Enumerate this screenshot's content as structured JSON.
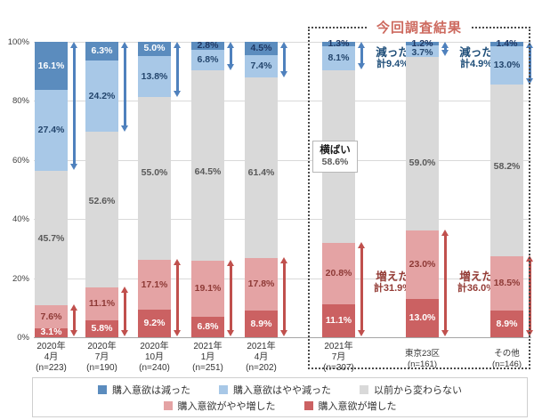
{
  "chart": {
    "box_title": "今回調査結果",
    "legend": {
      "row1": [
        {
          "name": "decreased",
          "label": "購入意欲は減った",
          "color": "#5b8cbe"
        },
        {
          "name": "somewhat-decreased",
          "label": "購入意欲はやや減った",
          "color": "#a8c8e7"
        },
        {
          "name": "unchanged",
          "label": "以前から変わらない",
          "color": "#d9d9d9"
        }
      ],
      "row2": [
        {
          "name": "somewhat-increased",
          "label": "購入意欲がやや増した",
          "color": "#e4a3a4"
        },
        {
          "name": "increased",
          "label": "購入意欲が増した",
          "color": "#cb6162"
        }
      ]
    }
  },
  "chart_data": {
    "type": "bar",
    "stacked": true,
    "orientation": "vertical",
    "unit": "%",
    "ylim": [
      0,
      100
    ],
    "yticks": [
      0,
      20,
      40,
      60,
      80,
      100
    ],
    "ytick_labels": [
      "0%",
      "20%",
      "40%",
      "60%",
      "80%",
      "100%"
    ],
    "grid": true,
    "legend_position": "bottom",
    "series_bottom_to_top": [
      {
        "key": "increased",
        "name": "購入意欲が増した",
        "color": "#cb6162",
        "label_color": "#ffffff"
      },
      {
        "key": "somewhat_increased",
        "name": "購入意欲がやや増した",
        "color": "#e4a3a4",
        "label_color": "#8e3a36"
      },
      {
        "key": "unchanged",
        "name": "以前から変わらない",
        "color": "#d9d9d9",
        "label_color": "#595959"
      },
      {
        "key": "somewhat_decreased",
        "name": "購入意欲はやや減った",
        "color": "#a8c8e7",
        "label_color": "#24466d"
      },
      {
        "key": "decreased",
        "name": "購入意欲は減った",
        "color": "#5b8cbe",
        "label_color": "#ffffff",
        "thin_label_color": "#1f3864"
      }
    ],
    "bars": [
      {
        "label_lines": [
          "2020年",
          "4月",
          "(n=223)"
        ],
        "values": [
          3.1,
          7.6,
          45.7,
          27.4,
          16.1
        ]
      },
      {
        "label_lines": [
          "2020年",
          "7月",
          "(n=190)"
        ],
        "values": [
          5.8,
          11.1,
          52.6,
          24.2,
          6.3
        ]
      },
      {
        "label_lines": [
          "2020年",
          "10月",
          "(n=240)"
        ],
        "values": [
          9.2,
          17.1,
          55.0,
          13.8,
          5.0
        ]
      },
      {
        "label_lines": [
          "2021年",
          "1月",
          "(n=251)"
        ],
        "values": [
          6.8,
          19.1,
          64.5,
          6.8,
          2.8
        ]
      },
      {
        "label_lines": [
          "2021年",
          "4月",
          "(n=202)"
        ],
        "values": [
          8.9,
          17.8,
          61.4,
          7.4,
          4.5
        ]
      },
      {
        "label_lines": [
          "2021年",
          "7月",
          "(n=307)"
        ],
        "values": [
          11.1,
          20.8,
          58.6,
          8.1,
          1.3
        ],
        "dec_note": {
          "lines": [
            "減った",
            "計9.4%"
          ]
        },
        "inc_note": {
          "lines": [
            "増えた",
            "計31.9%"
          ]
        },
        "flat_note": {
          "lines": [
            "横ばい",
            "58.6%"
          ]
        }
      },
      {
        "label_lines": [
          "東京23区",
          "(n=161)"
        ],
        "values": [
          13.0,
          23.0,
          59.0,
          3.7,
          1.2
        ],
        "dec_note": {
          "lines": [
            "減った",
            "計4.9%"
          ]
        },
        "inc_note": {
          "lines": [
            "増えた",
            "計36.0%"
          ]
        }
      },
      {
        "label_lines": [
          "その他",
          "(n=146)"
        ],
        "values": [
          8.9,
          18.5,
          58.2,
          13.0,
          1.4
        ]
      }
    ],
    "current_survey_group": {
      "title": "今回調査結果",
      "bar_indices": [
        5,
        6,
        7
      ]
    },
    "arrow_colors": {
      "decrease": "#4f81bd",
      "increase": "#c0504d"
    }
  }
}
